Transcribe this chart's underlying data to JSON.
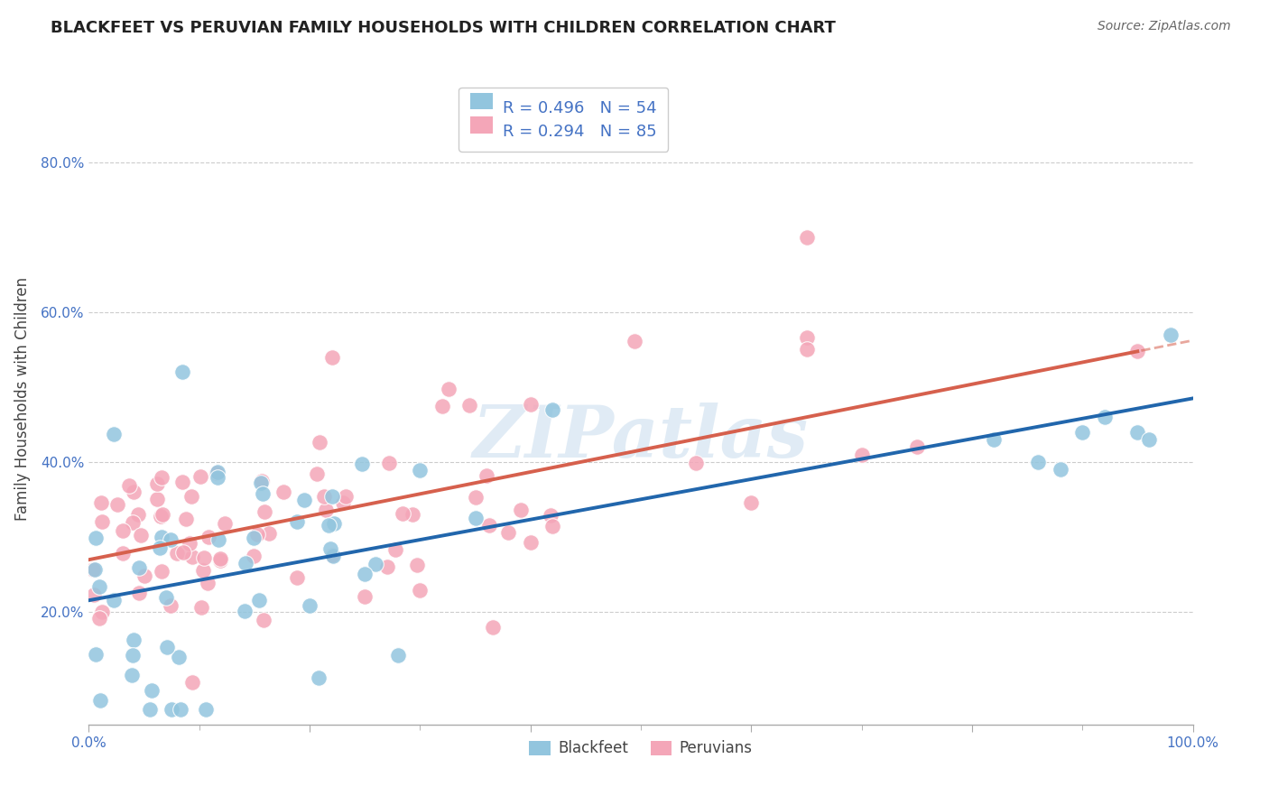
{
  "title": "BLACKFEET VS PERUVIAN FAMILY HOUSEHOLDS WITH CHILDREN CORRELATION CHART",
  "source": "Source: ZipAtlas.com",
  "ylabel": "Family Households with Children",
  "xlim": [
    0.0,
    1.0
  ],
  "ylim": [
    0.05,
    0.92
  ],
  "xticks": [
    0.0,
    0.2,
    0.4,
    0.6,
    0.8,
    1.0
  ],
  "yticks": [
    0.2,
    0.4,
    0.6,
    0.8
  ],
  "xtick_labels": [
    "0.0%",
    "",
    "",
    "",
    "",
    ""
  ],
  "ytick_labels": [
    "20.0%",
    "40.0%",
    "60.0%",
    "80.0%"
  ],
  "blackfeet_color": "#92c5de",
  "peruvian_color": "#f4a6b8",
  "blackfeet_line_color": "#2166ac",
  "peruvian_line_color": "#d6604d",
  "blackfeet_R": 0.496,
  "blackfeet_N": 54,
  "peruvian_R": 0.294,
  "peruvian_N": 85,
  "watermark": "ZIPatlas",
  "background_color": "#ffffff",
  "grid_color": "#cccccc",
  "tick_color": "#4472c4",
  "title_color": "#222222",
  "source_color": "#666666",
  "legend_text_color": "#222222",
  "legend_value_color": "#4472c4"
}
